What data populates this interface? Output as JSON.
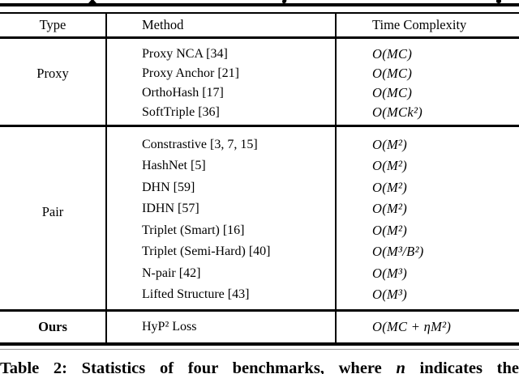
{
  "table": {
    "header": {
      "type": "Type",
      "method": "Method",
      "complexity": "Time Complexity"
    },
    "groups": [
      {
        "type": "Proxy",
        "rows": [
          {
            "method": "Proxy NCA [34]",
            "complexity": "O(MC)"
          },
          {
            "method": "Proxy Anchor [21]",
            "complexity": "O(MC)"
          },
          {
            "method": "OrthoHash [17]",
            "complexity": "O(MC)"
          },
          {
            "method": "SoftTriple [36]",
            "complexity": "O(MCk²)"
          }
        ]
      },
      {
        "type": "Pair",
        "rows": [
          {
            "method": "Constrastive [3, 7, 15]",
            "complexity": "O(M²)"
          },
          {
            "method": "HashNet [5]",
            "complexity": "O(M²)"
          },
          {
            "method": "DHN [59]",
            "complexity": "O(M²)"
          },
          {
            "method": "IDHN [57]",
            "complexity": "O(M²)"
          },
          {
            "method": "Triplet (Smart) [16]",
            "complexity": "O(M²)"
          },
          {
            "method": "Triplet (Semi-Hard) [40]",
            "complexity": "O(M³/B²)"
          },
          {
            "method": "N-pair [42]",
            "complexity": "O(M³)"
          },
          {
            "method": "Lifted Structure [43]",
            "complexity": "O(M³)"
          }
        ]
      },
      {
        "type": "Ours",
        "rows": [
          {
            "method": "HyP² Loss",
            "complexity": "O(MC + ηM²)"
          }
        ]
      }
    ]
  },
  "caption": {
    "prefix": "Table 2: Statistics of four benchmarks, where ",
    "variable": "n",
    "suffix": " indicates the"
  }
}
